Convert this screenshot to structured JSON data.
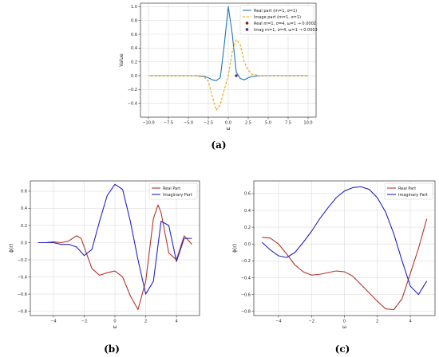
{
  "panels": [
    {
      "label": "a",
      "chart_data": {
        "type": "line",
        "xlabel": "ω",
        "ylabel": "Value",
        "xlim": [
          -11,
          11
        ],
        "ylim": [
          -0.6,
          1.05
        ],
        "xticks": [
          -10.0,
          -7.5,
          -5.0,
          -2.5,
          0.0,
          2.5,
          5.0,
          7.5,
          10.0
        ],
        "xtick_labels": [
          "−10.0",
          "−7.5",
          "−5.0",
          "−2.5",
          "0.0",
          "2.5",
          "5.0",
          "7.5",
          "10.0"
        ],
        "yticks": [
          -0.4,
          -0.2,
          0.0,
          0.2,
          0.4,
          0.6,
          0.8,
          1.0
        ],
        "ytick_labels": [
          "−0.4",
          "−0.2",
          "0.0",
          "0.2",
          "0.4",
          "0.6",
          "0.8",
          "1.0"
        ],
        "grid": true,
        "legend_position": "top-right",
        "series": [
          {
            "name": "Real part (m=1, σ=1)",
            "color": "#1f77b4",
            "style": "solid",
            "x": [
              -10,
              -4,
              -3,
              -2.5,
              -2,
              -1.5,
              -1,
              -0.5,
              0,
              0.5,
              1,
              1.5,
              2,
              2.5,
              3,
              4,
              10
            ],
            "y": [
              0,
              0,
              -0.01,
              -0.03,
              -0.06,
              -0.07,
              -0.03,
              0.45,
              1.0,
              0.6,
              0.05,
              -0.04,
              -0.06,
              -0.03,
              -0.01,
              0,
              0
            ]
          },
          {
            "name": "Image part (m=1, σ=1)",
            "color": "#e6a300",
            "style": "dashed",
            "x": [
              -10,
              -4,
              -3,
              -2.5,
              -2,
              -1.5,
              -1,
              -0.5,
              0,
              0.5,
              1,
              1.5,
              2,
              2.5,
              3,
              4,
              10
            ],
            "y": [
              0,
              0,
              -0.02,
              -0.08,
              -0.3,
              -0.5,
              -0.42,
              -0.2,
              0,
              0.35,
              0.52,
              0.45,
              0.2,
              0.08,
              0.02,
              0,
              0
            ]
          }
        ],
        "points": [
          {
            "name": "Real m=1, σ=4, ω=1 → 0.0002",
            "color": "#8b1a1a",
            "x": 1,
            "y": 0.0002
          },
          {
            "name": "Imag m=1, σ=4, ω=1 → 0.0003",
            "color": "#5a1f8c",
            "x": 1,
            "y": 0.0003
          }
        ]
      }
    },
    {
      "label": "b",
      "chart_data": {
        "type": "line",
        "xlabel": "ω",
        "ylabel": "ϕ(r)",
        "xlim": [
          -5.5,
          5.5
        ],
        "ylim": [
          -0.85,
          0.72
        ],
        "xticks": [
          -4,
          -2,
          0,
          2,
          4
        ],
        "xtick_labels": [
          "−4",
          "−2",
          "0",
          "2",
          "4"
        ],
        "yticks": [
          -0.8,
          -0.6,
          -0.4,
          -0.2,
          0.0,
          0.2,
          0.4,
          0.6
        ],
        "ytick_labels": [
          "−0.8",
          "−0.6",
          "−0.4",
          "−0.2",
          "0.0",
          "0.2",
          "0.4",
          "0.6"
        ],
        "grid": true,
        "legend_position": "top-right",
        "series": [
          {
            "name": "Real Part",
            "color": "#b5342a",
            "x": [
              -5,
              -4.5,
              -4,
              -3.5,
              -3,
              -2.5,
              -2.2,
              -2,
              -1.5,
              -1,
              -0.5,
              0,
              0.5,
              1,
              1.5,
              2,
              2.5,
              2.8,
              3,
              3.5,
              4,
              4.5,
              5
            ],
            "y": [
              0,
              0,
              0.01,
              0,
              0.02,
              0.08,
              0.05,
              -0.05,
              -0.3,
              -0.38,
              -0.35,
              -0.33,
              -0.4,
              -0.62,
              -0.78,
              -0.45,
              0.28,
              0.44,
              0.35,
              -0.12,
              -0.2,
              0.08,
              -0.02
            ]
          },
          {
            "name": "Imaginary Part",
            "color": "#2323c8",
            "x": [
              -5,
              -4.5,
              -4,
              -3.5,
              -3,
              -2.5,
              -2,
              -1.5,
              -1,
              -0.5,
              0,
              0.5,
              1,
              1.5,
              2,
              2.5,
              3,
              3.5,
              4,
              4.5,
              5
            ],
            "y": [
              0,
              0,
              0,
              -0.02,
              -0.02,
              -0.05,
              -0.15,
              -0.08,
              0.25,
              0.55,
              0.68,
              0.62,
              0.25,
              -0.2,
              -0.6,
              -0.45,
              0.25,
              0.2,
              -0.22,
              0.05,
              0.05
            ]
          }
        ]
      }
    },
    {
      "label": "c",
      "chart_data": {
        "type": "line",
        "xlabel": "ω",
        "ylabel": "ϕ(r)",
        "xlim": [
          -5.5,
          5.5
        ],
        "ylim": [
          -0.85,
          0.75
        ],
        "xticks": [
          -4,
          -2,
          0,
          2,
          4
        ],
        "xtick_labels": [
          "−4",
          "−2",
          "0",
          "2",
          "4"
        ],
        "yticks": [
          -0.8,
          -0.6,
          -0.4,
          -0.2,
          0.0,
          0.2,
          0.4,
          0.6
        ],
        "ytick_labels": [
          "−0.8",
          "−0.6",
          "−0.4",
          "−0.2",
          "0.0",
          "0.2",
          "0.4",
          "0.6"
        ],
        "grid": true,
        "legend_position": "top-right",
        "series": [
          {
            "name": "Real Part",
            "color": "#b5342a",
            "x": [
              -5,
              -4.5,
              -4,
              -3.5,
              -3,
              -2.5,
              -2,
              -1.5,
              -1,
              -0.5,
              0,
              0.5,
              1,
              1.5,
              2,
              2.5,
              3,
              3.5,
              4,
              4.5,
              5
            ],
            "y": [
              0.08,
              0.07,
              0.0,
              -0.12,
              -0.25,
              -0.33,
              -0.37,
              -0.36,
              -0.34,
              -0.32,
              -0.33,
              -0.38,
              -0.48,
              -0.58,
              -0.68,
              -0.77,
              -0.78,
              -0.65,
              -0.35,
              -0.05,
              0.3
            ]
          },
          {
            "name": "Imaginary Part",
            "color": "#2323c8",
            "x": [
              -5,
              -4.5,
              -4,
              -3.5,
              -3,
              -2.5,
              -2,
              -1.5,
              -1,
              -0.5,
              0,
              0.5,
              1,
              1.5,
              2,
              2.5,
              3,
              3.5,
              4,
              4.5,
              5
            ],
            "y": [
              0.02,
              -0.07,
              -0.14,
              -0.16,
              -0.1,
              0.02,
              0.15,
              0.3,
              0.43,
              0.55,
              0.63,
              0.67,
              0.68,
              0.65,
              0.55,
              0.38,
              0.12,
              -0.2,
              -0.5,
              -0.6,
              -0.44
            ]
          }
        ]
      }
    }
  ]
}
